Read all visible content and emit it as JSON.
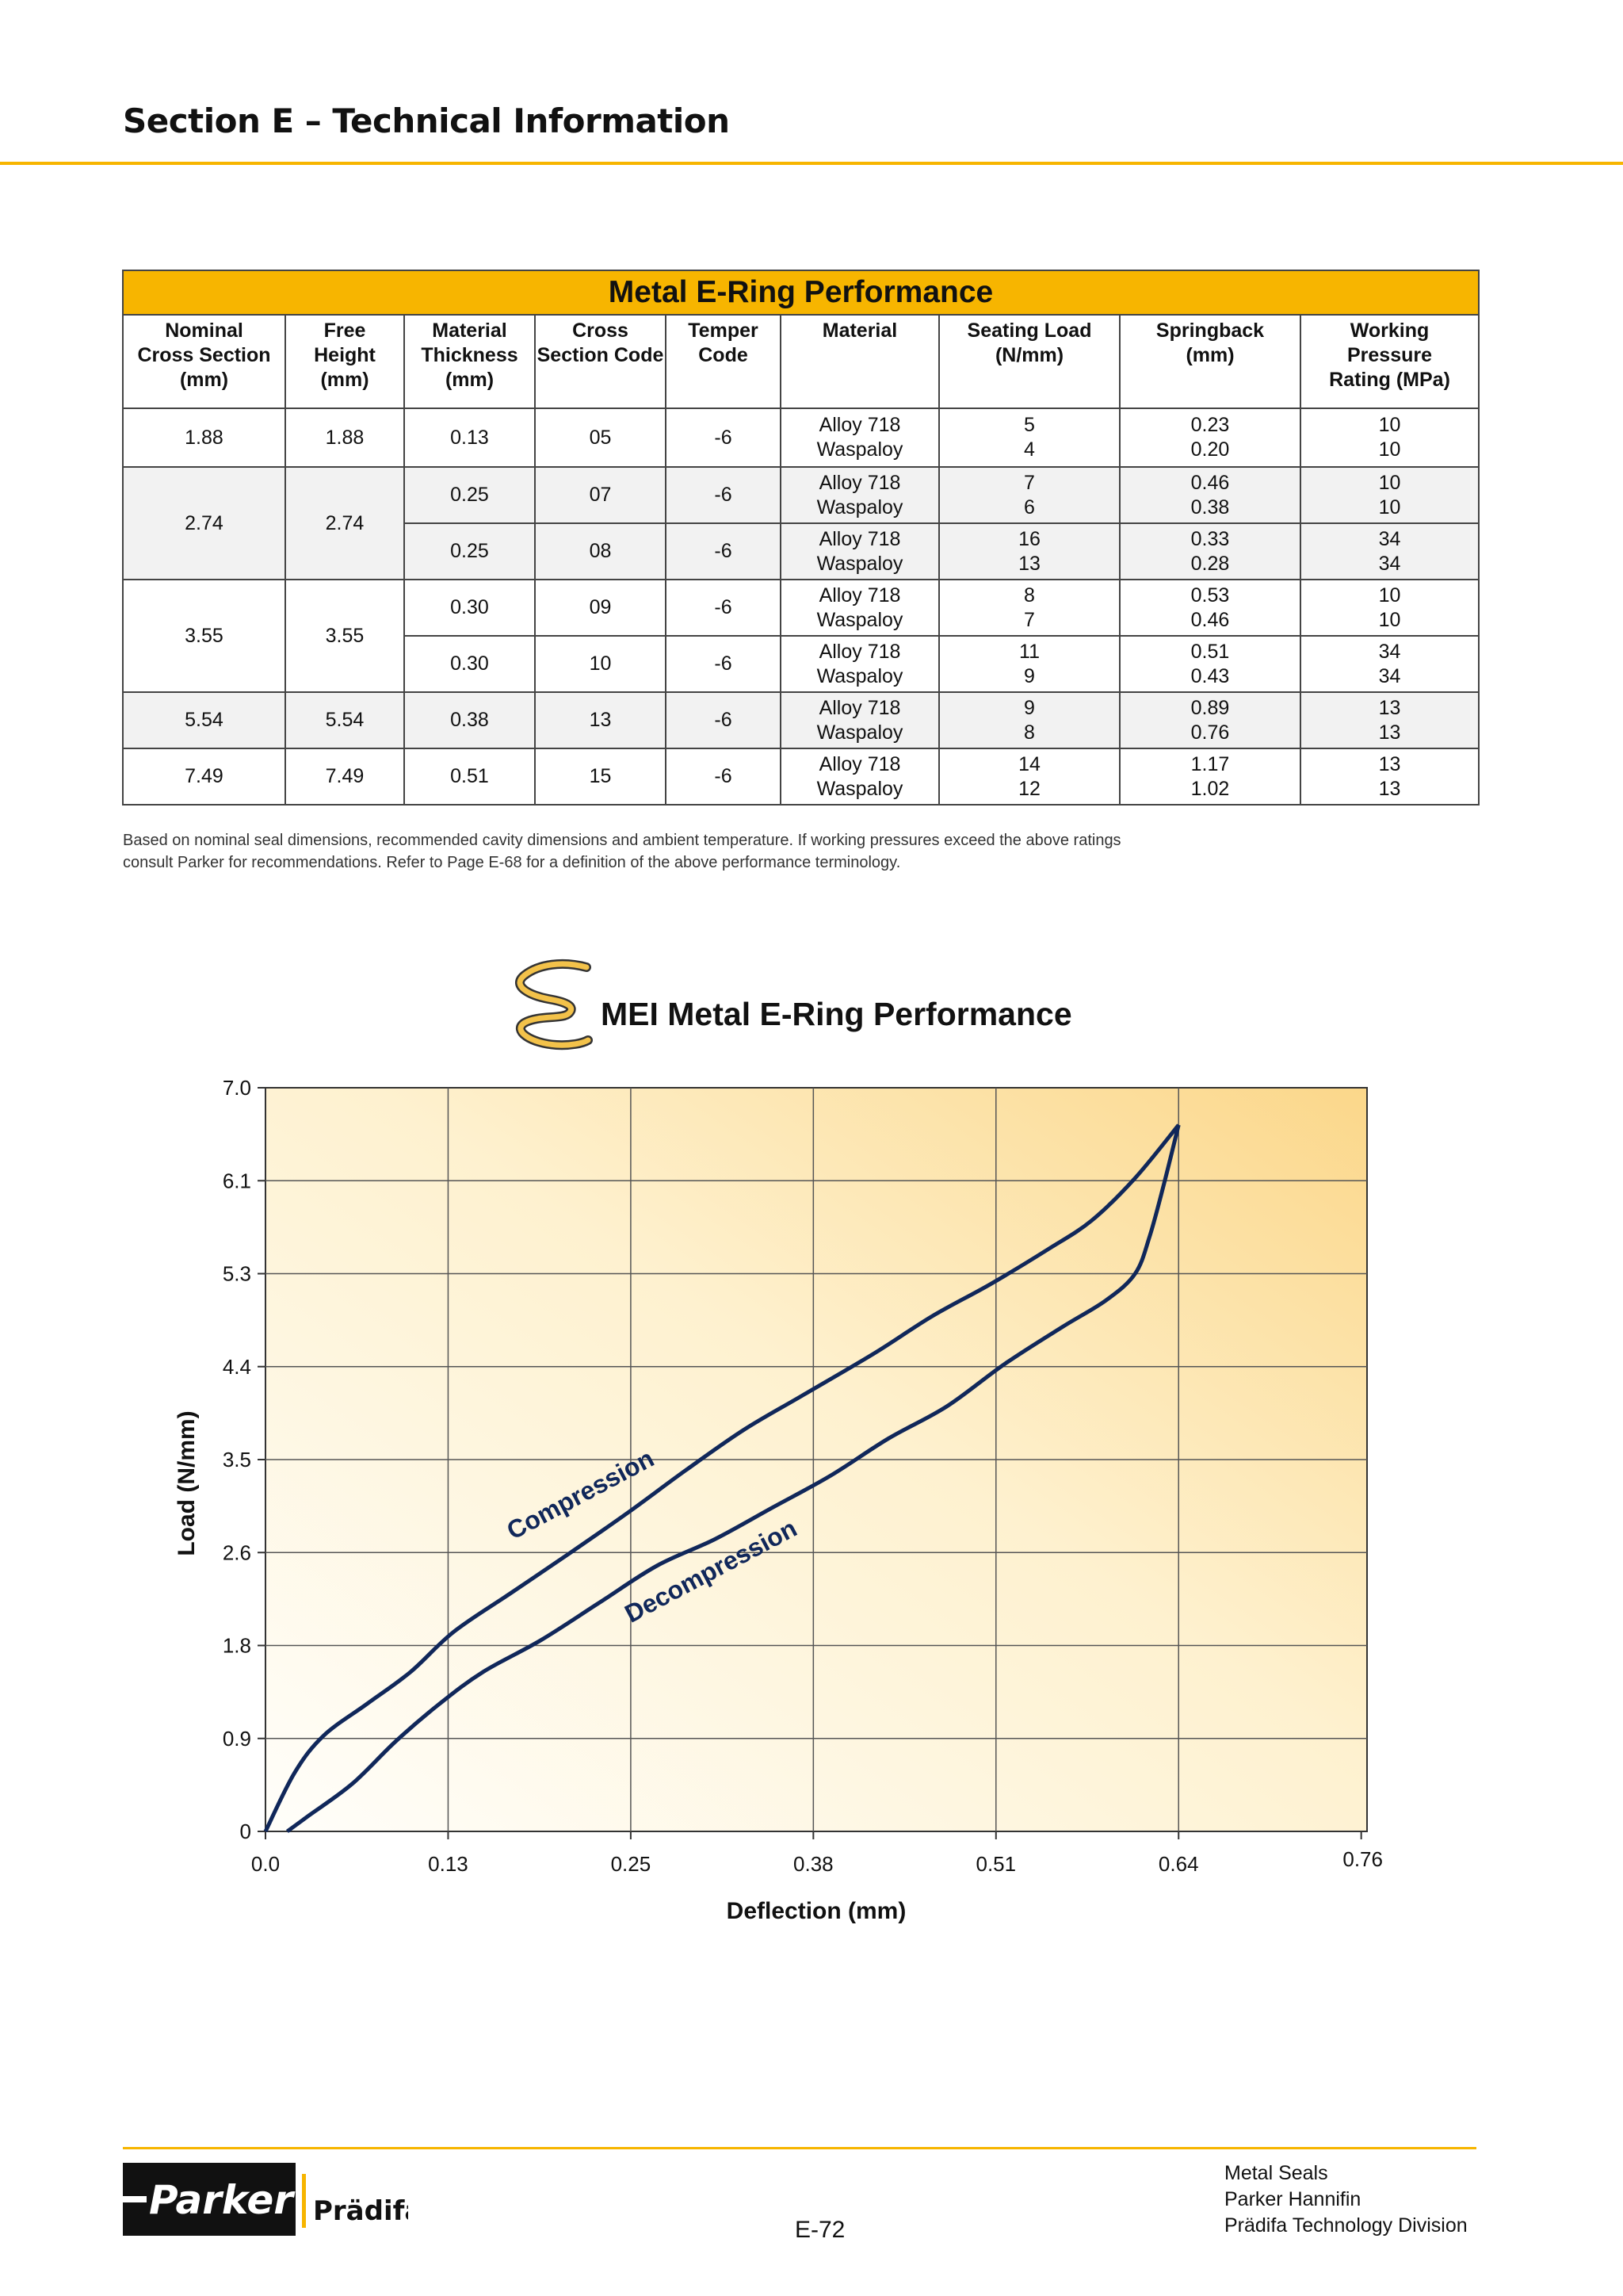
{
  "header": {
    "title": "Section E – Technical Information"
  },
  "table": {
    "title": "Metal E-Ring Performance",
    "columns": [
      "Nominal\nCross Section\n(mm)",
      "Free\nHeight\n(mm)",
      "Material\nThickness\n(mm)",
      "Cross\nSection Code",
      "Temper\nCode",
      "Material",
      "Seating Load\n(N/mm)",
      "Springback\n(mm)",
      "Working\nPressure\nRating (MPa)"
    ],
    "groups": [
      {
        "nominal": "1.88",
        "free_height": "1.88",
        "rows": [
          {
            "thickness": "0.13",
            "code": "05",
            "temper": "-6",
            "material": "Alloy 718\nWaspaloy",
            "seating": "5\n4",
            "springback": "0.23\n0.20",
            "pressure": "10\n10"
          }
        ]
      },
      {
        "nominal": "2.74",
        "free_height": "2.74",
        "rows": [
          {
            "thickness": "0.25",
            "code": "07",
            "temper": "-6",
            "material": "Alloy 718\nWaspaloy",
            "seating": "7\n6",
            "springback": "0.46\n0.38",
            "pressure": "10\n10"
          },
          {
            "thickness": "0.25",
            "code": "08",
            "temper": "-6",
            "material": "Alloy 718\nWaspaloy",
            "seating": "16\n13",
            "springback": "0.33\n0.28",
            "pressure": "34\n34"
          }
        ]
      },
      {
        "nominal": "3.55",
        "free_height": "3.55",
        "rows": [
          {
            "thickness": "0.30",
            "code": "09",
            "temper": "-6",
            "material": "Alloy 718\nWaspaloy",
            "seating": "8\n7",
            "springback": "0.53\n0.46",
            "pressure": "10\n10"
          },
          {
            "thickness": "0.30",
            "code": "10",
            "temper": "-6",
            "material": "Alloy 718\nWaspaloy",
            "seating": "11\n9",
            "springback": "0.51\n0.43",
            "pressure": "34\n34"
          }
        ]
      },
      {
        "nominal": "5.54",
        "free_height": "5.54",
        "rows": [
          {
            "thickness": "0.38",
            "code": "13",
            "temper": "-6",
            "material": "Alloy 718\nWaspaloy",
            "seating": "9\n8",
            "springback": "0.89\n0.76",
            "pressure": "13\n13"
          }
        ]
      },
      {
        "nominal": "7.49",
        "free_height": "7.49",
        "rows": [
          {
            "thickness": "0.51",
            "code": "15",
            "temper": "-6",
            "material": "Alloy 718\nWaspaloy",
            "seating": "14\n12",
            "springback": "1.17\n1.02",
            "pressure": "13\n13"
          }
        ]
      }
    ],
    "footnote": "Based on nominal seal dimensions, recommended cavity dimensions and ambient temperature. If working pressures exceed the above ratings consult Parker for recommendations. Refer to Page E-68 for a definition of the above performance terminology."
  },
  "chart_title": "MEI Metal E-Ring Performance",
  "chart_data": {
    "type": "line",
    "xlabel": "Deflection (mm)",
    "ylabel": "Load (N/mm)",
    "xlim": [
      0,
      0.76
    ],
    "ylim": [
      0,
      7.0
    ],
    "x_ticks": [
      "0.0",
      "0.13",
      "0.25",
      "0.38",
      "0.51",
      "0.64",
      "0.76"
    ],
    "x_tick_values": [
      0,
      0.126,
      0.252,
      0.378,
      0.504,
      0.63,
      0.756
    ],
    "y_ticks": [
      "0",
      "0.9",
      "1.8",
      "2.6",
      "3.5",
      "4.4",
      "5.3",
      "6.1",
      "7.0"
    ],
    "y_tick_values": [
      0,
      0.875,
      1.75,
      2.625,
      3.5,
      4.375,
      5.25,
      6.125,
      7.0
    ],
    "grid": true,
    "annotations": [
      {
        "text": "Compression",
        "x": 0.22,
        "y": 3.1,
        "angle": -28
      },
      {
        "text": "Decompression",
        "x": 0.31,
        "y": 2.38,
        "angle": -28
      }
    ],
    "series": [
      {
        "name": "Compression",
        "color": "#10275a",
        "x": [
          0,
          0.02,
          0.04,
          0.07,
          0.1,
          0.13,
          0.17,
          0.21,
          0.25,
          0.29,
          0.33,
          0.37,
          0.42,
          0.46,
          0.5,
          0.54,
          0.57,
          0.6,
          0.63
        ],
        "y": [
          0,
          0.55,
          0.9,
          1.2,
          1.5,
          1.88,
          2.25,
          2.62,
          3.0,
          3.4,
          3.78,
          4.1,
          4.5,
          4.85,
          5.15,
          5.48,
          5.75,
          6.15,
          6.65
        ]
      },
      {
        "name": "Decompression",
        "color": "#10275a",
        "x": [
          0.63,
          0.62,
          0.61,
          0.6,
          0.58,
          0.55,
          0.51,
          0.47,
          0.43,
          0.39,
          0.35,
          0.31,
          0.27,
          0.23,
          0.19,
          0.15,
          0.12,
          0.09,
          0.06,
          0.03,
          0.015
        ],
        "y": [
          6.65,
          6.1,
          5.6,
          5.25,
          5.0,
          4.75,
          4.4,
          4.0,
          3.7,
          3.35,
          3.05,
          2.75,
          2.5,
          2.15,
          1.8,
          1.5,
          1.2,
          0.85,
          0.45,
          0.15,
          0
        ]
      }
    ]
  },
  "footer": {
    "logo_text": "Parker",
    "logo_sub": "Prädifa",
    "page_number": "E-72",
    "lines": [
      "Metal Seals",
      "Parker Hannifin",
      "Prädifa Technology Division"
    ]
  },
  "colors": {
    "accent": "#f7b500",
    "curve": "#10275a",
    "chart_bg_light": "#fffdf5",
    "chart_bg_dark": "#fbd78a"
  }
}
